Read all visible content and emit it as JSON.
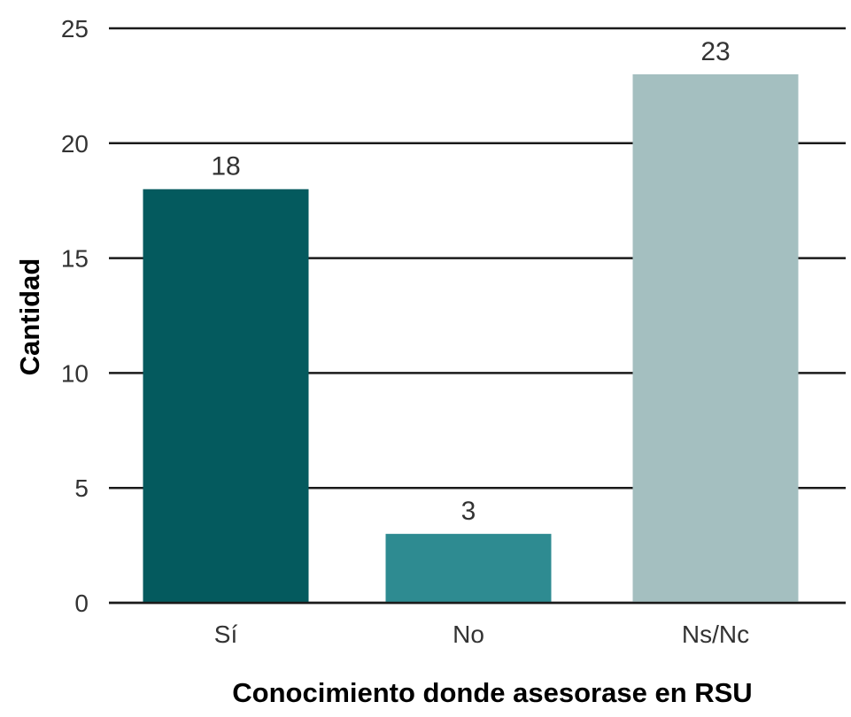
{
  "chart_data": {
    "type": "bar",
    "title": "",
    "xlabel": "Conocimiento donde asesorase en RSU",
    "ylabel": "Cantidad",
    "categories": [
      "Sí",
      "No",
      "Ns/Nc"
    ],
    "values": [
      18,
      3,
      23
    ],
    "colors": [
      "#045a5e",
      "#2e8b91",
      "#a4bfc0"
    ],
    "ylim": [
      0,
      25
    ],
    "yticks": [
      0,
      5,
      10,
      15,
      20,
      25
    ],
    "grid": true,
    "data_labels": true,
    "legend": "none"
  }
}
